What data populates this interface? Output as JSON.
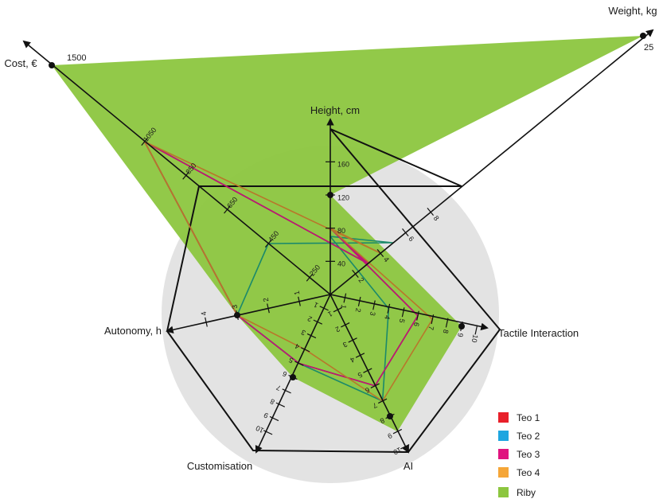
{
  "chart_data": {
    "type": "radar",
    "axes": [
      {
        "id": "height",
        "label": "Height, cm",
        "ticks": [
          "40",
          "80",
          "120",
          "160"
        ]
      },
      {
        "id": "tactile",
        "label": "Tactile Interaction",
        "ticks": [
          "1",
          "2",
          "3",
          "4",
          "5",
          "6",
          "7",
          "8",
          "9",
          "10"
        ]
      },
      {
        "id": "ai",
        "label": "AI",
        "ticks": [
          "1",
          "2",
          "3",
          "4",
          "5",
          "6",
          "7",
          "8",
          "9",
          "10"
        ]
      },
      {
        "id": "custom",
        "label": "Customisation",
        "ticks": [
          "1",
          "2",
          "3",
          "4",
          "5",
          "6",
          "7",
          "8",
          "9",
          "10"
        ]
      },
      {
        "id": "autonomy",
        "label": "Autonomy, h",
        "ticks": [
          "1",
          "2",
          "3",
          "4"
        ]
      },
      {
        "id": "cost",
        "label": "Cost, €",
        "ticks": [
          "250",
          "450",
          "650",
          "850",
          "1050"
        ],
        "extra_tick": "1500"
      },
      {
        "id": "weight",
        "label": "Weight, kg",
        "ticks": [
          "2",
          "4",
          "6",
          "8"
        ],
        "extra_tick": "25"
      }
    ],
    "series": [
      {
        "name": "Teo 1",
        "color": "#e8202a",
        "values": {
          "height": 80,
          "tactile": 6,
          "ai": 6,
          "custom": 5,
          "autonomy": 3,
          "cost": 1050,
          "weight": 3
        }
      },
      {
        "name": "Teo 2",
        "color": "#1ea6e0",
        "values": {
          "height": 70,
          "tactile": 4,
          "ai": 7,
          "custom": 5,
          "autonomy": 3,
          "cost": 450,
          "weight": 5
        }
      },
      {
        "name": "Teo 3",
        "color": "#e0147f",
        "values": {
          "height": 80,
          "tactile": 6,
          "ai": 6,
          "custom": 5,
          "autonomy": 3,
          "cost": 1050,
          "weight": 3
        }
      },
      {
        "name": "Teo 4",
        "color": "#f5a638",
        "values": {
          "height": 80,
          "tactile": 7,
          "ai": 7,
          "custom": 4,
          "autonomy": 3,
          "cost": 1050,
          "weight": 4
        }
      },
      {
        "name": "Riby",
        "color": "#8cc63f",
        "values": {
          "height": 120,
          "tactile": 9,
          "ai": 9,
          "custom": 6,
          "autonomy": 3,
          "cost": 1500,
          "weight": 25
        }
      }
    ],
    "legend_position": "bottom-right"
  },
  "legend": [
    {
      "label": "Teo 1",
      "color": "#e8202a"
    },
    {
      "label": "Teo 2",
      "color": "#1ea6e0"
    },
    {
      "label": "Teo 3",
      "color": "#e0147f"
    },
    {
      "label": "Teo 4",
      "color": "#f5a638"
    },
    {
      "label": "Riby",
      "color": "#8cc63f"
    }
  ]
}
